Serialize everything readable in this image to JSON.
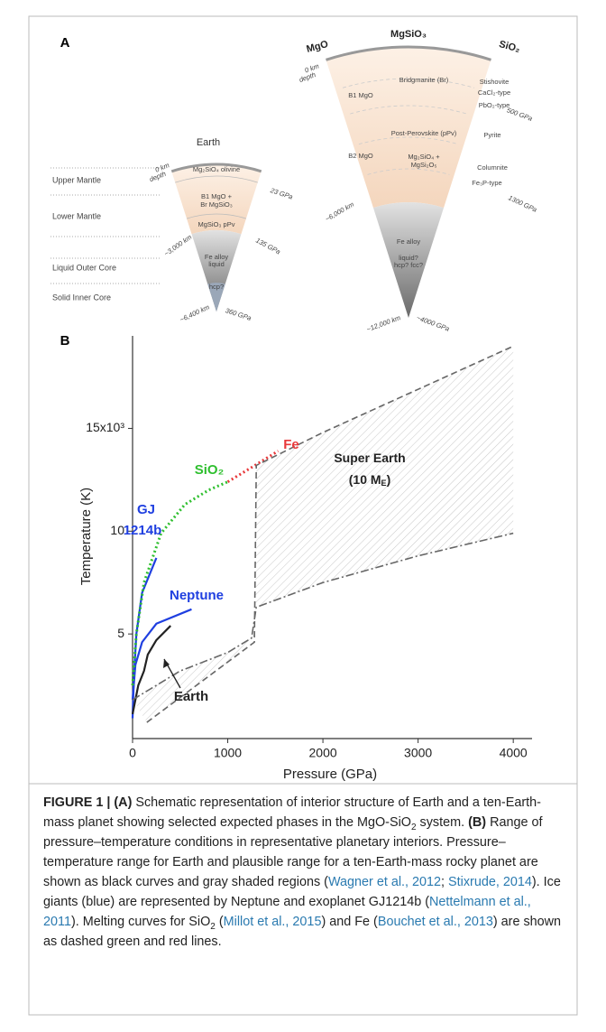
{
  "panel_a": {
    "label": "A",
    "earth": {
      "title": "Earth",
      "layers": [
        "Upper Mantle",
        "Lower Mantle",
        "Liquid Outer Core",
        "Solid Inner Core"
      ],
      "labels": [
        "Mg₂SiO₄ olivine",
        "B1 MgO +",
        "Br MgSiO₃",
        "MgSiO₃ pPv",
        "Fe alloy",
        "liquid",
        "hcp?",
        "0 km",
        "depth",
        "23 GPa",
        "~3,000 km",
        "135 GPa",
        "~6,400 km",
        "360 GPa"
      ]
    },
    "super_earth": {
      "columns": [
        "MgO",
        "MgSiO₃",
        "SiO₂"
      ],
      "labels": [
        "Bridgmanite (Br)",
        "Stishovite",
        "CaCl₂-type",
        "PbO₂-type",
        "B1 MgO",
        "Post-Perovskite (pPv)",
        "Pyrite",
        "B2 MgO",
        "Columnite",
        "Mg₂SiO₄ +",
        "MgSi₂O₅",
        "Fe₃P-type",
        "Fe alloy",
        "liquid?",
        "hcp? fcc?",
        "0 km",
        "depth",
        "500 GPa",
        "1300 GPa",
        "~6,000 km",
        "~12,000 km",
        "~4000 GPa"
      ]
    }
  },
  "panel_b": {
    "label": "B"
  },
  "chart_data": {
    "type": "line",
    "x_label": "Pressure (GPa)",
    "y_label": "Temperature (K)",
    "xlim": [
      0,
      4150
    ],
    "ylim": [
      0,
      19.5
    ],
    "xticks": [
      0,
      1000,
      2000,
      3000,
      4000
    ],
    "yticks": [
      5,
      10,
      {
        "value": 15,
        "label": "15x10³"
      }
    ],
    "series": [
      {
        "label": [
          "GJ",
          "1214b"
        ],
        "color": "#1f3fe0",
        "style": "solid",
        "x": [
          0,
          15,
          40,
          100,
          250
        ],
        "values": [
          0.9,
          3,
          5,
          7,
          8.7
        ]
      },
      {
        "label": [
          "Neptune"
        ],
        "color": "#1f3fe0",
        "style": "solid",
        "x": [
          0,
          30,
          100,
          250,
          620
        ],
        "values": [
          1.8,
          3.5,
          4.6,
          5.5,
          6.2
        ]
      },
      {
        "label": [
          "SiO₂"
        ],
        "color": "#2fbf2f",
        "style": "dotted",
        "x": [
          0,
          40,
          120,
          300,
          550,
          800,
          1000
        ],
        "values": [
          2.5,
          5,
          7.5,
          9.9,
          11.3,
          12,
          12.4
        ]
      },
      {
        "label": [
          "Fe"
        ],
        "color": "#e8383a",
        "style": "dotted",
        "x": [
          1000,
          1250,
          1530
        ],
        "values": [
          12.4,
          13.1,
          13.9
        ]
      },
      {
        "label": [
          "Earth"
        ],
        "color": "#222222",
        "style": "solid",
        "x": [
          0,
          60,
          120,
          160,
          250,
          400
        ],
        "values": [
          1.1,
          2.5,
          3.2,
          4,
          4.7,
          5.4
        ]
      },
      {
        "color": "#666666",
        "style": "dashdot",
        "x": [
          0,
          500,
          1000,
          1250,
          1300,
          2000,
          3000,
          4000
        ],
        "values": [
          1.8,
          3.2,
          4.1,
          4.8,
          6.3,
          7.5,
          8.8,
          9.9
        ]
      },
      {
        "color": "#666666",
        "style": "dashed",
        "x": [
          150,
          1280,
          1300,
          2000,
          3000,
          4000
        ],
        "values": [
          0.7,
          4.6,
          13.2,
          14.8,
          16.9,
          19
        ]
      }
    ],
    "annotations": [
      {
        "text": "Super Earth"
      },
      {
        "text": "(10 M",
        "sub": "E",
        "after": ")"
      }
    ]
  },
  "caption": [
    {
      "text": "FIGURE 1 | (A)",
      "style": "bold"
    },
    {
      "text": " Schematic representation of interior structure of Earth and a ten-Earth-mass planet showing selected expected phases in the MgO-SiO"
    },
    {
      "text": "2",
      "style": "sub"
    },
    {
      "text": " system. "
    },
    {
      "text": "(B)",
      "style": "bold"
    },
    {
      "text": " Range of pressure–temperature conditions in representative planetary interiors. Pressure–temperature range for Earth and plausible range for a ten-Earth-mass rocky planet are shown as black curves and gray shaded regions ("
    },
    {
      "text": "Wagner et al., 2012",
      "style": "link"
    },
    {
      "text": "; "
    },
    {
      "text": "Stixrude, 2014",
      "style": "link"
    },
    {
      "text": "). Ice giants (blue) are represented by Neptune and exoplanet GJ1214b ("
    },
    {
      "text": "Nettelmann et al., 2011",
      "style": "link"
    },
    {
      "text": "). Melting curves for SiO"
    },
    {
      "text": "2",
      "style": "sub"
    },
    {
      "text": " ("
    },
    {
      "text": "Millot et al., 2015",
      "style": "link"
    },
    {
      "text": ") and Fe ("
    },
    {
      "text": "Bouchet et al., 2013",
      "style": "link"
    },
    {
      "text": ") are shown as dashed green and red lines."
    }
  ]
}
